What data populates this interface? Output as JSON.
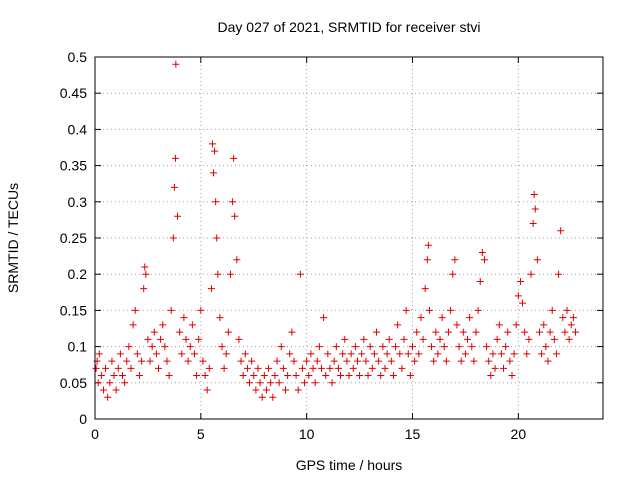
{
  "chart_data": {
    "type": "scatter",
    "title": "Day 027 of 2021, SRMTID for receiver stvi",
    "xlabel": "GPS time / hours",
    "ylabel": "SRMTID / TECUs",
    "xlim": [
      0,
      24
    ],
    "ylim": [
      0,
      0.5
    ],
    "x_ticks": [
      0,
      5,
      10,
      15,
      20
    ],
    "y_ticks": [
      0,
      0.05,
      0.1,
      0.15,
      0.2,
      0.25,
      0.3,
      0.35,
      0.4,
      0.45,
      0.5
    ],
    "x_tick_labels": [
      "0",
      "5",
      "10",
      "15",
      "20"
    ],
    "y_tick_labels": [
      "0",
      "0.05",
      "0.1",
      "0.15",
      "0.2",
      "0.25",
      "0.3",
      "0.35",
      "0.4",
      "0.45",
      "0.5"
    ],
    "grid": true,
    "marker": "+",
    "series": [
      {
        "name": "SRMTID",
        "color": "#e00000",
        "points": [
          [
            0.05,
            0.07
          ],
          [
            0.1,
            0.08
          ],
          [
            0.15,
            0.05
          ],
          [
            0.2,
            0.09
          ],
          [
            0.3,
            0.06
          ],
          [
            0.4,
            0.04
          ],
          [
            0.5,
            0.07
          ],
          [
            0.6,
            0.03
          ],
          [
            0.7,
            0.05
          ],
          [
            0.8,
            0.08
          ],
          [
            0.9,
            0.06
          ],
          [
            1.0,
            0.04
          ],
          [
            1.1,
            0.07
          ],
          [
            1.2,
            0.09
          ],
          [
            1.3,
            0.06
          ],
          [
            1.4,
            0.05
          ],
          [
            1.5,
            0.08
          ],
          [
            1.6,
            0.1
          ],
          [
            1.7,
            0.07
          ],
          [
            1.8,
            0.13
          ],
          [
            1.9,
            0.15
          ],
          [
            2.0,
            0.09
          ],
          [
            2.1,
            0.06
          ],
          [
            2.2,
            0.08
          ],
          [
            2.3,
            0.18
          ],
          [
            2.35,
            0.21
          ],
          [
            2.4,
            0.2
          ],
          [
            2.5,
            0.11
          ],
          [
            2.6,
            0.08
          ],
          [
            2.7,
            0.1
          ],
          [
            2.8,
            0.12
          ],
          [
            2.9,
            0.09
          ],
          [
            3.0,
            0.07
          ],
          [
            3.1,
            0.11
          ],
          [
            3.2,
            0.13
          ],
          [
            3.3,
            0.1
          ],
          [
            3.4,
            0.08
          ],
          [
            3.5,
            0.06
          ],
          [
            3.6,
            0.15
          ],
          [
            3.7,
            0.25
          ],
          [
            3.75,
            0.32
          ],
          [
            3.8,
            0.36
          ],
          [
            3.82,
            0.49
          ],
          [
            3.9,
            0.28
          ],
          [
            4.0,
            0.12
          ],
          [
            4.1,
            0.09
          ],
          [
            4.2,
            0.14
          ],
          [
            4.3,
            0.11
          ],
          [
            4.4,
            0.08
          ],
          [
            4.5,
            0.1
          ],
          [
            4.6,
            0.13
          ],
          [
            4.7,
            0.09
          ],
          [
            4.8,
            0.06
          ],
          [
            4.9,
            0.11
          ],
          [
            5.0,
            0.15
          ],
          [
            5.1,
            0.08
          ],
          [
            5.2,
            0.06
          ],
          [
            5.3,
            0.04
          ],
          [
            5.4,
            0.07
          ],
          [
            5.5,
            0.18
          ],
          [
            5.55,
            0.38
          ],
          [
            5.6,
            0.34
          ],
          [
            5.65,
            0.37
          ],
          [
            5.7,
            0.3
          ],
          [
            5.75,
            0.25
          ],
          [
            5.8,
            0.2
          ],
          [
            5.9,
            0.14
          ],
          [
            6.0,
            0.1
          ],
          [
            6.1,
            0.07
          ],
          [
            6.2,
            0.09
          ],
          [
            6.3,
            0.12
          ],
          [
            6.4,
            0.2
          ],
          [
            6.5,
            0.3
          ],
          [
            6.55,
            0.36
          ],
          [
            6.6,
            0.28
          ],
          [
            6.7,
            0.22
          ],
          [
            6.8,
            0.11
          ],
          [
            6.9,
            0.08
          ],
          [
            7.0,
            0.06
          ],
          [
            7.1,
            0.09
          ],
          [
            7.2,
            0.07
          ],
          [
            7.3,
            0.05
          ],
          [
            7.4,
            0.08
          ],
          [
            7.5,
            0.06
          ],
          [
            7.6,
            0.04
          ],
          [
            7.7,
            0.07
          ],
          [
            7.8,
            0.05
          ],
          [
            7.9,
            0.03
          ],
          [
            8.0,
            0.06
          ],
          [
            8.1,
            0.04
          ],
          [
            8.2,
            0.07
          ],
          [
            8.3,
            0.05
          ],
          [
            8.4,
            0.03
          ],
          [
            8.5,
            0.06
          ],
          [
            8.6,
            0.08
          ],
          [
            8.7,
            0.05
          ],
          [
            8.8,
            0.1
          ],
          [
            8.9,
            0.07
          ],
          [
            9.0,
            0.04
          ],
          [
            9.1,
            0.06
          ],
          [
            9.2,
            0.09
          ],
          [
            9.3,
            0.12
          ],
          [
            9.4,
            0.08
          ],
          [
            9.5,
            0.06
          ],
          [
            9.6,
            0.04
          ],
          [
            9.7,
            0.2
          ],
          [
            9.8,
            0.07
          ],
          [
            9.9,
            0.05
          ],
          [
            10.0,
            0.08
          ],
          [
            10.1,
            0.06
          ],
          [
            10.2,
            0.09
          ],
          [
            10.3,
            0.07
          ],
          [
            10.4,
            0.05
          ],
          [
            10.5,
            0.08
          ],
          [
            10.6,
            0.1
          ],
          [
            10.7,
            0.07
          ],
          [
            10.8,
            0.14
          ],
          [
            10.9,
            0.06
          ],
          [
            11.0,
            0.09
          ],
          [
            11.1,
            0.07
          ],
          [
            11.2,
            0.05
          ],
          [
            11.3,
            0.08
          ],
          [
            11.4,
            0.1
          ],
          [
            11.5,
            0.07
          ],
          [
            11.6,
            0.06
          ],
          [
            11.7,
            0.09
          ],
          [
            11.8,
            0.11
          ],
          [
            11.9,
            0.08
          ],
          [
            12.0,
            0.06
          ],
          [
            12.1,
            0.09
          ],
          [
            12.2,
            0.07
          ],
          [
            12.3,
            0.1
          ],
          [
            12.4,
            0.08
          ],
          [
            12.5,
            0.06
          ],
          [
            12.6,
            0.09
          ],
          [
            12.7,
            0.11
          ],
          [
            12.8,
            0.08
          ],
          [
            12.9,
            0.06
          ],
          [
            13.0,
            0.1
          ],
          [
            13.1,
            0.07
          ],
          [
            13.2,
            0.09
          ],
          [
            13.3,
            0.12
          ],
          [
            13.4,
            0.08
          ],
          [
            13.5,
            0.06
          ],
          [
            13.6,
            0.1
          ],
          [
            13.7,
            0.07
          ],
          [
            13.8,
            0.09
          ],
          [
            13.9,
            0.11
          ],
          [
            14.0,
            0.08
          ],
          [
            14.1,
            0.06
          ],
          [
            14.2,
            0.1
          ],
          [
            14.3,
            0.13
          ],
          [
            14.4,
            0.09
          ],
          [
            14.5,
            0.07
          ],
          [
            14.6,
            0.11
          ],
          [
            14.7,
            0.15
          ],
          [
            14.8,
            0.09
          ],
          [
            14.9,
            0.06
          ],
          [
            15.0,
            0.1
          ],
          [
            15.1,
            0.08
          ],
          [
            15.2,
            0.12
          ],
          [
            15.3,
            0.09
          ],
          [
            15.4,
            0.14
          ],
          [
            15.5,
            0.11
          ],
          [
            15.6,
            0.18
          ],
          [
            15.7,
            0.22
          ],
          [
            15.75,
            0.24
          ],
          [
            15.8,
            0.15
          ],
          [
            15.9,
            0.1
          ],
          [
            16.0,
            0.08
          ],
          [
            16.1,
            0.12
          ],
          [
            16.2,
            0.09
          ],
          [
            16.3,
            0.11
          ],
          [
            16.4,
            0.14
          ],
          [
            16.5,
            0.1
          ],
          [
            16.6,
            0.08
          ],
          [
            16.7,
            0.12
          ],
          [
            16.8,
            0.15
          ],
          [
            16.9,
            0.2
          ],
          [
            17.0,
            0.22
          ],
          [
            17.1,
            0.13
          ],
          [
            17.2,
            0.1
          ],
          [
            17.3,
            0.08
          ],
          [
            17.4,
            0.12
          ],
          [
            17.5,
            0.09
          ],
          [
            17.6,
            0.11
          ],
          [
            17.7,
            0.14
          ],
          [
            17.8,
            0.1
          ],
          [
            17.9,
            0.08
          ],
          [
            18.0,
            0.12
          ],
          [
            18.1,
            0.15
          ],
          [
            18.2,
            0.19
          ],
          [
            18.3,
            0.23
          ],
          [
            18.4,
            0.22
          ],
          [
            18.5,
            0.1
          ],
          [
            18.6,
            0.08
          ],
          [
            18.7,
            0.06
          ],
          [
            18.8,
            0.09
          ],
          [
            18.9,
            0.07
          ],
          [
            19.0,
            0.11
          ],
          [
            19.1,
            0.13
          ],
          [
            19.2,
            0.09
          ],
          [
            19.3,
            0.07
          ],
          [
            19.4,
            0.1
          ],
          [
            19.5,
            0.12
          ],
          [
            19.6,
            0.08
          ],
          [
            19.7,
            0.06
          ],
          [
            19.8,
            0.09
          ],
          [
            19.9,
            0.13
          ],
          [
            20.0,
            0.17
          ],
          [
            20.1,
            0.19
          ],
          [
            20.2,
            0.16
          ],
          [
            20.3,
            0.12
          ],
          [
            20.4,
            0.09
          ],
          [
            20.5,
            0.11
          ],
          [
            20.6,
            0.2
          ],
          [
            20.7,
            0.27
          ],
          [
            20.75,
            0.31
          ],
          [
            20.8,
            0.29
          ],
          [
            20.9,
            0.22
          ],
          [
            21.0,
            0.12
          ],
          [
            21.1,
            0.09
          ],
          [
            21.2,
            0.13
          ],
          [
            21.3,
            0.1
          ],
          [
            21.4,
            0.08
          ],
          [
            21.5,
            0.12
          ],
          [
            21.6,
            0.15
          ],
          [
            21.7,
            0.11
          ],
          [
            21.8,
            0.09
          ],
          [
            21.9,
            0.2
          ],
          [
            22.0,
            0.26
          ],
          [
            22.1,
            0.14
          ],
          [
            22.2,
            0.12
          ],
          [
            22.3,
            0.15
          ],
          [
            22.4,
            0.11
          ],
          [
            22.5,
            0.13
          ],
          [
            22.6,
            0.14
          ],
          [
            22.7,
            0.12
          ]
        ]
      }
    ]
  },
  "colors": {
    "marker": "#e00000",
    "axis": "#000000",
    "grid": "#a0a0a0",
    "background": "#ffffff"
  }
}
